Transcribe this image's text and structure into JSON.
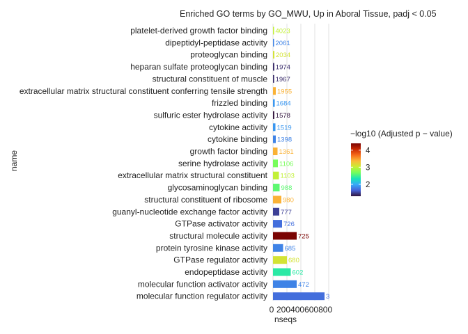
{
  "chart_data": {
    "type": "bar",
    "orientation": "horizontal",
    "title": "Enriched GO terms by GO_MWU, Up in Aboral Tissue, padj < 0.05",
    "xlabel": "nseqs",
    "ylabel": "name",
    "xlim": [
      0,
      900
    ],
    "xticks": [
      0,
      200,
      400,
      600,
      800
    ],
    "xtick_labels": [
      "0",
      "200",
      "400",
      "600",
      "800"
    ],
    "grid": "vertical major",
    "legend_title": "−log10 (Adjusted p − value)",
    "legend_position": "right",
    "colorbar": {
      "min": 1.3,
      "max": 4.4,
      "ticks": [
        2,
        3,
        4
      ],
      "tick_labels": [
        "2",
        "3",
        "4"
      ],
      "stops": [
        "#30123b",
        "#4662d7",
        "#36aaf9",
        "#1ae4b6",
        "#72fe5e",
        "#c8ef34",
        "#faba39",
        "#f66b19",
        "#ca2a04",
        "#7a0403"
      ]
    },
    "categories": [
      "platelet-derived growth factor binding",
      "dipeptidyl-peptidase activity",
      "proteoglycan binding",
      "heparan sulfate proteoglycan binding",
      "structural constituent of muscle",
      "extracellular matrix structural constituent conferring tensile strength",
      "frizzled binding",
      "sulfuric ester hydrolase activity",
      "cytokine activity",
      "cytokine binding",
      "growth factor binding",
      "serine hydrolase activity",
      "extracellular matrix structural constituent",
      "glycosaminoglycan binding",
      "structural constituent of ribosome",
      "guanyl-nucleotide exchange factor activity",
      "GTPase activator activity",
      "structural molecule activity",
      "protein tyrosine kinase activity",
      "GTPase regulator activity",
      "endopeptidase activity",
      "molecular function activator activity",
      "molecular function regulator activity"
    ],
    "values": [
      10,
      15,
      20,
      18,
      16,
      40,
      25,
      18,
      35,
      40,
      65,
      70,
      85,
      95,
      120,
      90,
      130,
      340,
      145,
      200,
      255,
      340,
      740
    ],
    "value_labels": [
      "4023",
      "2061",
      "2034",
      "1974",
      "1967",
      "1955",
      "1684",
      "1578",
      "1519",
      "1398",
      "1361",
      "1106",
      "1103",
      "988",
      "980",
      "777",
      "726",
      "725",
      "685",
      "680",
      "602",
      "472",
      "3"
    ],
    "color_values": [
      3.0,
      1.8,
      3.1,
      1.4,
      1.4,
      3.4,
      1.9,
      1.3,
      1.9,
      1.8,
      3.4,
      2.7,
      3.0,
      2.6,
      3.4,
      1.5,
      1.7,
      4.4,
      1.8,
      3.1,
      2.4,
      1.8,
      1.7
    ]
  }
}
